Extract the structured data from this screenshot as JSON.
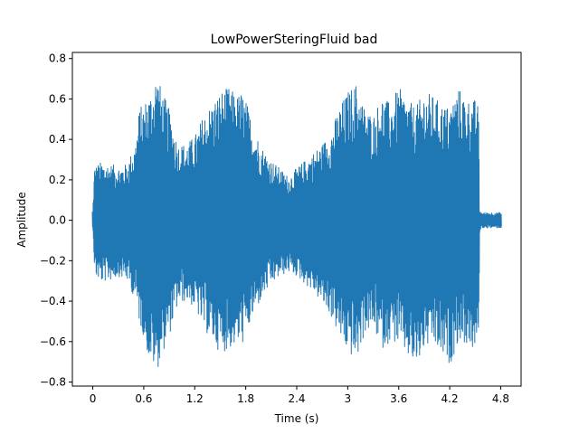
{
  "chart_data": {
    "type": "line",
    "title": "LowPowerSteringFluid bad",
    "xlabel": "Time (s)",
    "ylabel": "Amplitude",
    "xlim": [
      -0.24,
      5.04
    ],
    "ylim": [
      -0.82,
      0.83
    ],
    "x_ticks": [
      0,
      0.6,
      1.2,
      1.8,
      2.4,
      3,
      3.6,
      4.2,
      4.8
    ],
    "x_tick_labels": [
      "0",
      "0.6",
      "1.2",
      "1.8",
      "2.4",
      "3",
      "3.6",
      "4.2",
      "4.8"
    ],
    "y_ticks": [
      -0.8,
      -0.6,
      -0.4,
      -0.2,
      0.0,
      0.2,
      0.4,
      0.6,
      0.8
    ],
    "y_tick_labels": [
      "−0.8",
      "−0.6",
      "−0.4",
      "−0.2",
      "0.0",
      "0.2",
      "0.4",
      "0.6",
      "0.8"
    ],
    "grid": false,
    "line_color": "#1f77b4",
    "series": [
      {
        "name": "",
        "envelope_time": [
          0.0,
          0.02,
          0.1,
          0.2,
          0.3,
          0.4,
          0.5,
          0.55,
          0.6,
          0.65,
          0.7,
          0.75,
          0.8,
          0.9,
          1.0,
          1.1,
          1.2,
          1.3,
          1.4,
          1.5,
          1.6,
          1.7,
          1.75,
          1.8,
          1.9,
          2.0,
          2.1,
          2.2,
          2.3,
          2.4,
          2.5,
          2.6,
          2.7,
          2.8,
          2.9,
          3.0,
          3.1,
          3.2,
          3.3,
          3.4,
          3.5,
          3.6,
          3.7,
          3.8,
          3.9,
          4.0,
          4.1,
          4.2,
          4.3,
          4.4,
          4.5,
          4.54,
          4.55,
          4.57,
          4.6,
          4.7,
          4.8
        ],
        "envelope_max": [
          0.05,
          0.27,
          0.29,
          0.28,
          0.27,
          0.28,
          0.38,
          0.56,
          0.58,
          0.62,
          0.65,
          0.74,
          0.66,
          0.55,
          0.38,
          0.38,
          0.42,
          0.52,
          0.58,
          0.64,
          0.66,
          0.62,
          0.64,
          0.6,
          0.45,
          0.36,
          0.3,
          0.26,
          0.22,
          0.26,
          0.3,
          0.34,
          0.38,
          0.44,
          0.56,
          0.64,
          0.68,
          0.56,
          0.52,
          0.62,
          0.58,
          0.66,
          0.6,
          0.56,
          0.64,
          0.62,
          0.58,
          0.56,
          0.66,
          0.6,
          0.6,
          0.56,
          0.06,
          0.04,
          0.04,
          0.04,
          0.04
        ],
        "envelope_min": [
          -0.05,
          -0.28,
          -0.31,
          -0.3,
          -0.28,
          -0.3,
          -0.4,
          -0.52,
          -0.58,
          -0.68,
          -0.72,
          -0.75,
          -0.68,
          -0.57,
          -0.42,
          -0.4,
          -0.44,
          -0.54,
          -0.6,
          -0.66,
          -0.64,
          -0.62,
          -0.62,
          -0.58,
          -0.46,
          -0.38,
          -0.32,
          -0.28,
          -0.26,
          -0.28,
          -0.32,
          -0.36,
          -0.42,
          -0.48,
          -0.58,
          -0.66,
          -0.7,
          -0.56,
          -0.54,
          -0.64,
          -0.6,
          -0.62,
          -0.68,
          -0.74,
          -0.64,
          -0.62,
          -0.68,
          -0.72,
          -0.6,
          -0.62,
          -0.66,
          -0.6,
          -0.06,
          -0.04,
          -0.04,
          -0.04,
          -0.04
        ]
      }
    ]
  }
}
